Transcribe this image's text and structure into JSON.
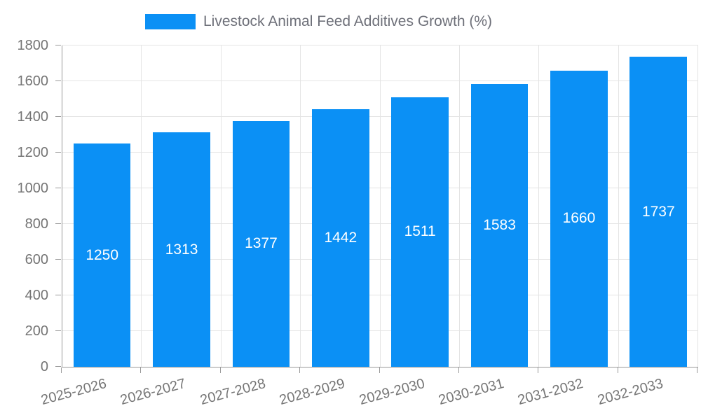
{
  "legend": {
    "label": "Livestock Animal Feed Additives Growth (%)"
  },
  "chart_data": {
    "type": "bar",
    "title": "Livestock Animal Feed Additives Growth (%)",
    "categories": [
      "2025-2026",
      "2026-2027",
      "2027-2028",
      "2028-2029",
      "2029-2030",
      "2030-2031",
      "2031-2032",
      "2032-2033"
    ],
    "values": [
      1250,
      1313,
      1377,
      1442,
      1511,
      1583,
      1660,
      1737
    ],
    "xlabel": "",
    "ylabel": "",
    "ylim": [
      0,
      1800
    ],
    "yticks": [
      0,
      200,
      400,
      600,
      800,
      1000,
      1200,
      1400,
      1600,
      1800
    ],
    "grid": true,
    "legend_position": "top-center",
    "x_label_rotation_deg": -15,
    "bar_color": "#0b90f5",
    "value_label_color": "#ffffff",
    "axis_text_color": "#757575",
    "gridline_color": "#e4e4e4",
    "axis_line_color": "#999999"
  }
}
